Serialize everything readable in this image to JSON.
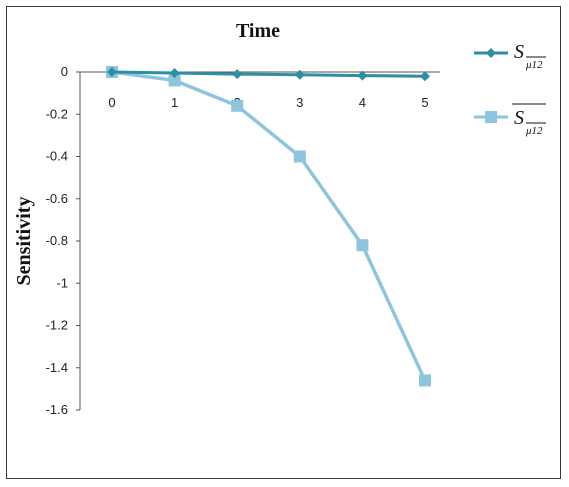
{
  "chart_data": {
    "type": "line",
    "title": "Time",
    "xlabel": "",
    "ylabel": "Sensitivity",
    "x": [
      0,
      1,
      2,
      3,
      4,
      5
    ],
    "xlim": [
      0,
      5
    ],
    "ylim": [
      -1.6,
      0
    ],
    "yticks": [
      "0",
      "-0.2",
      "-0.4",
      "-0.6",
      "-0.8",
      "-1",
      "-1.2",
      "-1.4",
      "-1.6"
    ],
    "xticks": [
      "0",
      "1",
      "2",
      "3",
      "4",
      "5"
    ],
    "grid": false,
    "legend_position": "top-right",
    "series": [
      {
        "name": "S_μ12",
        "legend_main": "S",
        "legend_sub": "μ12",
        "legend_overbar": false,
        "marker": "diamond",
        "color": "#2e8fa3",
        "values": [
          0,
          -0.005,
          -0.01,
          -0.013,
          -0.017,
          -0.02
        ]
      },
      {
        "name": "S̄_μ12",
        "legend_main": "S",
        "legend_sub": "μ12",
        "legend_overbar": true,
        "marker": "square",
        "color": "#8ec4dc",
        "values": [
          0,
          -0.04,
          -0.16,
          -0.4,
          -0.82,
          -1.46
        ]
      }
    ]
  }
}
